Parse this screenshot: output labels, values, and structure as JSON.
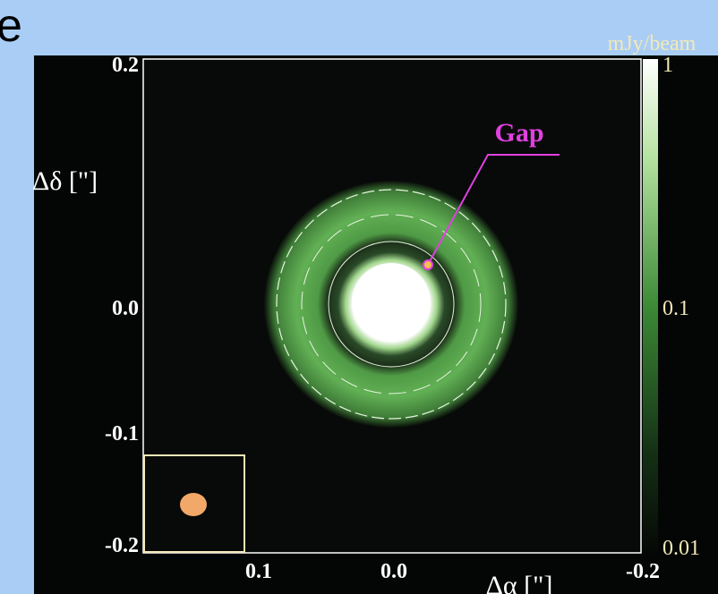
{
  "header": {
    "text": "e"
  },
  "figure": {
    "y_axis": {
      "label": "Δδ [\"]",
      "ticks": [
        "0.2",
        "0.0",
        "-0.1",
        "-0.2"
      ]
    },
    "x_axis": {
      "label": "Δα [\"]",
      "ticks": [
        "0.1",
        "0.0",
        "-0.2"
      ]
    },
    "colorbar": {
      "unit": "mJy/beam",
      "ticks": [
        "1",
        "0.1",
        "0.01"
      ]
    },
    "annotation": "Gap"
  }
}
